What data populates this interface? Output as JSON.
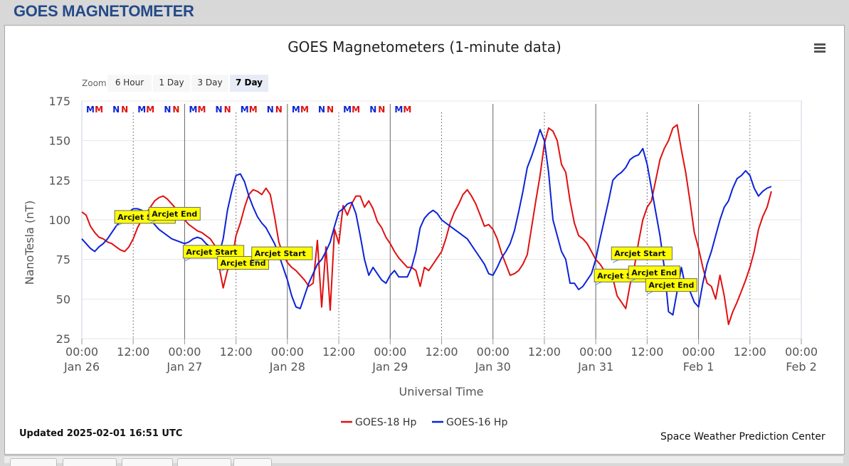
{
  "header": {
    "title": "GOES MAGNETOMETER"
  },
  "chart_menu": {
    "icon": "hamburger-menu-icon"
  },
  "zoom": {
    "label": "Zoom",
    "options": [
      "6 Hour",
      "1 Day",
      "3 Day",
      "7 Day"
    ],
    "selected": "7 Day"
  },
  "footer": {
    "updated": "Updated 2025-02-01 16:51 UTC",
    "credits": "Space Weather Prediction Center"
  },
  "colors": {
    "goes18": "#e01010",
    "goes16": "#0b23d6",
    "title": "#254a88"
  },
  "chart_data": {
    "type": "line",
    "title": "GOES Magnetometers (1-minute data)",
    "xlabel": "Universal Time",
    "ylabel": "NanoTesla (nT)",
    "ylim": [
      25,
      175
    ],
    "yticks": [
      25,
      50,
      75,
      100,
      125,
      150,
      175
    ],
    "xlim": [
      0,
      168
    ],
    "xticks": [
      {
        "x": 0,
        "time": "00:00",
        "date": "Jan 26"
      },
      {
        "x": 12,
        "time": "12:00",
        "date": ""
      },
      {
        "x": 24,
        "time": "00:00",
        "date": "Jan 27"
      },
      {
        "x": 36,
        "time": "12:00",
        "date": ""
      },
      {
        "x": 48,
        "time": "00:00",
        "date": "Jan 28"
      },
      {
        "x": 60,
        "time": "12:00",
        "date": ""
      },
      {
        "x": 72,
        "time": "00:00",
        "date": "Jan 29"
      },
      {
        "x": 84,
        "time": "12:00",
        "date": ""
      },
      {
        "x": 96,
        "time": "00:00",
        "date": "Jan 30"
      },
      {
        "x": 108,
        "time": "12:00",
        "date": ""
      },
      {
        "x": 120,
        "time": "00:00",
        "date": "Jan 31"
      },
      {
        "x": 132,
        "time": "12:00",
        "date": ""
      },
      {
        "x": 144,
        "time": "00:00",
        "date": "Feb 1"
      },
      {
        "x": 156,
        "time": "12:00",
        "date": ""
      },
      {
        "x": 168,
        "time": "00:00",
        "date": "Feb 2"
      }
    ],
    "grid": true,
    "legend_position": "bottom-center",
    "series": [
      {
        "name": "GOES-18 Hp",
        "color": "#e01010",
        "x": [
          0,
          1,
          2,
          3,
          4,
          5,
          6,
          7,
          8,
          9,
          10,
          11,
          12,
          13,
          14,
          15,
          16,
          17,
          18,
          19,
          20,
          21,
          22,
          23,
          24,
          25,
          26,
          27,
          28,
          29,
          30,
          31,
          32,
          33,
          34,
          35,
          36,
          37,
          38,
          39,
          40,
          41,
          42,
          43,
          44,
          45,
          46,
          47,
          48,
          49,
          50,
          51,
          52,
          53,
          54,
          55,
          56,
          57,
          58,
          59,
          60,
          61,
          62,
          63,
          64,
          65,
          66,
          67,
          68,
          69,
          70,
          71,
          72,
          73,
          74,
          75,
          76,
          77,
          78,
          79,
          80,
          81,
          82,
          83,
          84,
          85,
          86,
          87,
          88,
          89,
          90,
          91,
          92,
          93,
          94,
          95,
          96,
          97,
          98,
          99,
          100,
          101,
          102,
          103,
          104,
          105,
          106,
          107,
          108,
          109,
          110,
          111,
          112,
          113,
          114,
          115,
          116,
          117,
          118,
          119,
          120,
          121,
          122,
          123,
          124,
          125,
          126,
          127,
          128,
          129,
          130,
          131,
          132,
          133,
          134,
          135,
          136,
          137,
          138,
          139,
          140,
          141,
          142,
          143,
          144,
          145,
          146,
          147,
          148,
          149,
          150,
          151,
          152,
          153,
          154,
          155,
          156,
          157,
          158,
          159,
          160,
          161
        ],
        "y": [
          105,
          103,
          96,
          92,
          89,
          88,
          86,
          85,
          83,
          81,
          80,
          83,
          88,
          95,
          100,
          104,
          108,
          112,
          114,
          115,
          113,
          110,
          107,
          103,
          100,
          97,
          95,
          93,
          92,
          90,
          88,
          84,
          71,
          57,
          68,
          74,
          90,
          98,
          108,
          116,
          119,
          118,
          116,
          120,
          116,
          102,
          86,
          78,
          73,
          70,
          68,
          65,
          62,
          58,
          60,
          87,
          45,
          83,
          43,
          94,
          85,
          109,
          103,
          110,
          115,
          115,
          108,
          112,
          107,
          99,
          95,
          89,
          85,
          80,
          76,
          73,
          70,
          70,
          68,
          58,
          70,
          68,
          72,
          76,
          80,
          88,
          98,
          105,
          110,
          116,
          119,
          115,
          110,
          103,
          96,
          97,
          94,
          88,
          79,
          72,
          65,
          66,
          68,
          72,
          78,
          95,
          112,
          128,
          148,
          158,
          156,
          150,
          135,
          130,
          112,
          98,
          90,
          88,
          85,
          80,
          75,
          72,
          68,
          66,
          63,
          52,
          48,
          44,
          59,
          70,
          86,
          100,
          108,
          112,
          125,
          138,
          145,
          150,
          158,
          160,
          144,
          130,
          112,
          92,
          82,
          70,
          60,
          58,
          50,
          65,
          52,
          34,
          42,
          48,
          55,
          62,
          70,
          80,
          94,
          102,
          108,
          118
        ]
      },
      {
        "name": "GOES-16 Hp",
        "color": "#0b23d6",
        "x": [
          0,
          1,
          2,
          3,
          4,
          5,
          6,
          7,
          8,
          9,
          10,
          11,
          12,
          13,
          14,
          15,
          16,
          17,
          18,
          19,
          20,
          21,
          22,
          23,
          24,
          25,
          26,
          27,
          28,
          29,
          30,
          31,
          32,
          33,
          34,
          35,
          36,
          37,
          38,
          39,
          40,
          41,
          42,
          43,
          44,
          45,
          46,
          47,
          48,
          49,
          50,
          51,
          52,
          53,
          54,
          55,
          56,
          57,
          58,
          59,
          60,
          61,
          62,
          63,
          64,
          65,
          66,
          67,
          68,
          69,
          70,
          71,
          72,
          73,
          74,
          75,
          76,
          77,
          78,
          79,
          80,
          81,
          82,
          83,
          84,
          85,
          86,
          87,
          88,
          89,
          90,
          91,
          92,
          93,
          94,
          95,
          96,
          97,
          98,
          99,
          100,
          101,
          102,
          103,
          104,
          105,
          106,
          107,
          108,
          109,
          110,
          111,
          112,
          113,
          114,
          115,
          116,
          117,
          118,
          119,
          120,
          121,
          122,
          123,
          124,
          125,
          126,
          127,
          128,
          129,
          130,
          131,
          132,
          133,
          134,
          135,
          136,
          137,
          138,
          139,
          140,
          141,
          142,
          143,
          144,
          145,
          146,
          147,
          148,
          149,
          150,
          151,
          152,
          153,
          154,
          155,
          156,
          157,
          158,
          159,
          160,
          161
        ],
        "y": [
          88,
          85,
          82,
          80,
          83,
          85,
          88,
          92,
          96,
          99,
          102,
          105,
          107,
          107,
          106,
          103,
          100,
          97,
          94,
          92,
          90,
          88,
          87,
          86,
          85,
          86,
          88,
          89,
          88,
          85,
          83,
          80,
          78,
          88,
          106,
          118,
          128,
          129,
          124,
          115,
          108,
          102,
          98,
          95,
          90,
          85,
          78,
          70,
          62,
          52,
          45,
          44,
          52,
          60,
          66,
          72,
          75,
          80,
          86,
          96,
          105,
          107,
          110,
          111,
          104,
          90,
          75,
          65,
          70,
          66,
          62,
          60,
          65,
          68,
          64,
          64,
          64,
          70,
          80,
          95,
          101,
          104,
          106,
          104,
          100,
          98,
          96,
          94,
          92,
          90,
          88,
          84,
          80,
          76,
          72,
          66,
          65,
          70,
          76,
          80,
          85,
          93,
          105,
          118,
          133,
          140,
          148,
          157,
          150,
          130,
          100,
          90,
          80,
          75,
          60,
          60,
          56,
          58,
          62,
          66,
          75,
          88,
          100,
          112,
          125,
          128,
          130,
          133,
          138,
          140,
          141,
          145,
          135,
          120,
          105,
          90,
          70,
          42,
          40,
          55,
          70,
          57,
          55,
          48,
          45,
          60,
          72,
          80,
          90,
          100,
          108,
          112,
          120,
          126,
          128,
          131,
          128,
          120,
          115,
          118,
          120,
          121
        ]
      }
    ],
    "markers": [
      {
        "label": "M",
        "x": 2,
        "color": "#0b23d6"
      },
      {
        "label": "M",
        "x": 4,
        "color": "#e01010"
      },
      {
        "label": "N",
        "x": 8,
        "color": "#0b23d6"
      },
      {
        "label": "N",
        "x": 10,
        "color": "#e01010"
      },
      {
        "label": "M",
        "x": 14,
        "color": "#0b23d6"
      },
      {
        "label": "M",
        "x": 16,
        "color": "#e01010"
      },
      {
        "label": "N",
        "x": 20,
        "color": "#0b23d6"
      },
      {
        "label": "N",
        "x": 22,
        "color": "#e01010"
      },
      {
        "label": "M",
        "x": 26,
        "color": "#0b23d6"
      },
      {
        "label": "M",
        "x": 28,
        "color": "#e01010"
      },
      {
        "label": "N",
        "x": 32,
        "color": "#0b23d6"
      },
      {
        "label": "N",
        "x": 34,
        "color": "#e01010"
      },
      {
        "label": "M",
        "x": 38,
        "color": "#0b23d6"
      },
      {
        "label": "M",
        "x": 40,
        "color": "#e01010"
      },
      {
        "label": "N",
        "x": 44,
        "color": "#0b23d6"
      },
      {
        "label": "N",
        "x": 46,
        "color": "#e01010"
      },
      {
        "label": "M",
        "x": 50,
        "color": "#0b23d6"
      },
      {
        "label": "M",
        "x": 52,
        "color": "#e01010"
      },
      {
        "label": "N",
        "x": 56,
        "color": "#0b23d6"
      },
      {
        "label": "N",
        "x": 58,
        "color": "#e01010"
      },
      {
        "label": "M",
        "x": 62,
        "color": "#0b23d6"
      },
      {
        "label": "M",
        "x": 64,
        "color": "#e01010"
      },
      {
        "label": "N",
        "x": 68,
        "color": "#0b23d6"
      },
      {
        "label": "N",
        "x": 70,
        "color": "#e01010"
      },
      {
        "label": "M",
        "x": 74,
        "color": "#0b23d6"
      },
      {
        "label": "M",
        "x": 76,
        "color": "#e01010"
      }
    ],
    "annotations": [
      {
        "text": "Arcjet Start",
        "x": 8,
        "y": 96
      },
      {
        "text": "Arcjet End",
        "x": 16,
        "y": 98
      },
      {
        "text": "Arcjet Start",
        "x": 24,
        "y": 74
      },
      {
        "text": "Arcjet End",
        "x": 32,
        "y": 67
      },
      {
        "text": "Arcjet Start",
        "x": 40,
        "y": 73
      },
      {
        "text": "Arcjet Start",
        "x": 124,
        "y": 73
      },
      {
        "text": "Arcjet Start",
        "x": 120,
        "y": 59
      },
      {
        "text": "Arcjet End",
        "x": 128,
        "y": 61
      },
      {
        "text": "Arcjet End",
        "x": 132,
        "y": 53
      }
    ]
  }
}
